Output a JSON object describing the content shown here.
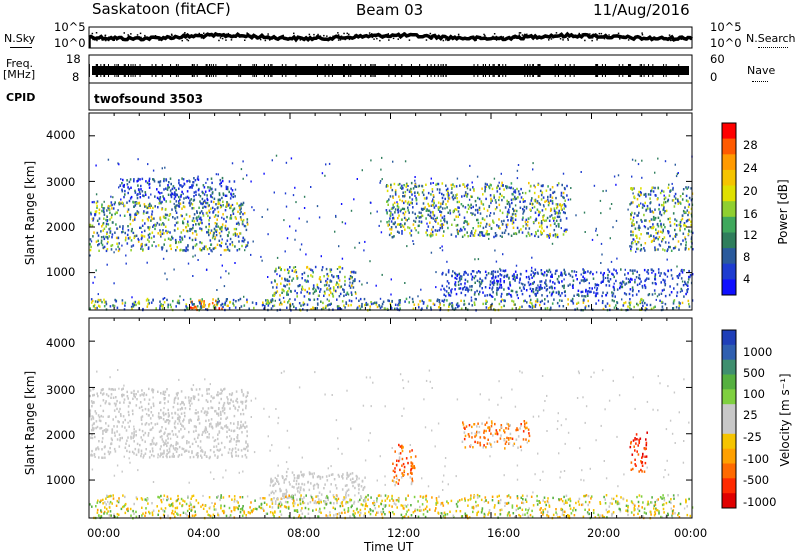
{
  "header": {
    "title": "Saskatoon (fitACF)",
    "beam": "Beam 03",
    "date": "11/Aug/2016"
  },
  "left_labels": {
    "nsky": "N.Sky",
    "freq_line1": "Freq.",
    "freq_line2": "[MHz]",
    "cpid": "CPID"
  },
  "right_labels": {
    "nsearch": "N.Search",
    "nave": "Nave"
  },
  "cpid_text": "twofsound 3503",
  "chart_data": [
    {
      "type": "line",
      "name": "noise",
      "yticks_left": [
        "10^5",
        "10^0"
      ],
      "yticks_right": [
        "10^5",
        "10^0"
      ],
      "series_labels": [
        "N.Sky",
        "N.Search"
      ]
    },
    {
      "type": "line",
      "name": "frequency",
      "yticks_left": [
        "18",
        "8"
      ],
      "yticks_right": [
        "60",
        "0"
      ],
      "series_labels": [
        "Freq. [MHz]",
        "Nave"
      ]
    },
    {
      "type": "heatmap",
      "name": "power",
      "ylabel": "Slant Range [km]",
      "yticks": [
        "4000",
        "3000",
        "2000",
        "1000"
      ],
      "ylim": [
        180,
        4500
      ],
      "xlim": [
        0,
        24
      ],
      "colorbar": {
        "label": "Power [dB]",
        "ticks": [
          "28",
          "24",
          "20",
          "16",
          "12",
          "8",
          "4"
        ],
        "colors": [
          "#ff0000",
          "#ff5a00",
          "#ff9a00",
          "#f5c400",
          "#dfe000",
          "#8fcf30",
          "#3fa85c",
          "#2f7e5c",
          "#2a5a9c",
          "#1e3cd0",
          "#1010ff"
        ]
      },
      "regions": [
        {
          "t0": 0.0,
          "t1": 6.3,
          "r0": 1500,
          "r1": 2600,
          "level": "mid"
        },
        {
          "t0": 1.2,
          "t1": 5.8,
          "r0": 2600,
          "r1": 3100,
          "level": "low"
        },
        {
          "t0": 7.2,
          "t1": 10.6,
          "r0": 500,
          "r1": 1150,
          "level": "mid"
        },
        {
          "t0": 11.8,
          "t1": 19.0,
          "r0": 1800,
          "r1": 3000,
          "level": "mid"
        },
        {
          "t0": 14.0,
          "t1": 24.0,
          "r0": 500,
          "r1": 1100,
          "level": "low"
        },
        {
          "t0": 21.5,
          "t1": 24.0,
          "r0": 1500,
          "r1": 2900,
          "level": "mid"
        },
        {
          "t0": 4.0,
          "t1": 5.3,
          "r0": 200,
          "r1": 420,
          "level": "high"
        },
        {
          "t0": 0.0,
          "t1": 24.0,
          "r0": 200,
          "r1": 450,
          "level": "mid"
        }
      ]
    },
    {
      "type": "heatmap",
      "name": "velocity",
      "xlabel": "Time UT",
      "ylabel": "Slant Range [km]",
      "yticks": [
        "4000",
        "3000",
        "2000",
        "1000"
      ],
      "xticks": [
        "00:00",
        "04:00",
        "08:00",
        "12:00",
        "16:00",
        "20:00",
        "00:00"
      ],
      "ylim": [
        180,
        4500
      ],
      "xlim": [
        0,
        24
      ],
      "colorbar": {
        "label": "Velocity [m s⁻¹]",
        "ticks": [
          "1000",
          "500",
          "100",
          "25",
          "-25",
          "-100",
          "-500",
          "-1000"
        ],
        "colors": [
          "#1f3fb8",
          "#2f5fb0",
          "#3f8f6f",
          "#55b040",
          "#7fd040",
          "#c8c8c8",
          "#c8c8c8",
          "#f5c400",
          "#ffa000",
          "#ff6a00",
          "#ff2a00",
          "#e00000"
        ]
      },
      "regions": [
        {
          "t0": 0.0,
          "t1": 6.3,
          "r0": 1500,
          "r1": 3000,
          "level": "gray"
        },
        {
          "t0": 7.2,
          "t1": 11.0,
          "r0": 500,
          "r1": 1200,
          "level": "gray"
        },
        {
          "t0": 12.0,
          "t1": 13.0,
          "r0": 900,
          "r1": 1800,
          "level": "orange"
        },
        {
          "t0": 14.8,
          "t1": 17.5,
          "r0": 1700,
          "r1": 2300,
          "level": "orange"
        },
        {
          "t0": 21.5,
          "t1": 22.2,
          "r0": 1200,
          "r1": 2100,
          "level": "red"
        },
        {
          "t0": 0.0,
          "t1": 24.0,
          "r0": 200,
          "r1": 700,
          "level": "yellowgreen"
        }
      ]
    }
  ]
}
